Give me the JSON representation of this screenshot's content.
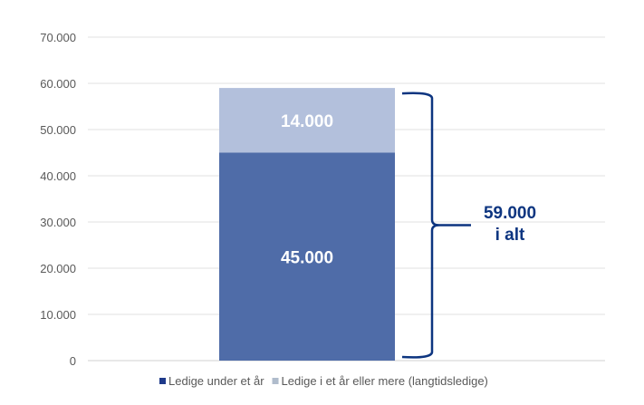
{
  "chart_data": {
    "type": "bar",
    "stacked": true,
    "categories": [
      ""
    ],
    "series": [
      {
        "name": "Ledige under et år",
        "values": [
          45000
        ],
        "color": "#4f6ca8",
        "legend_color": "#1f3a8a",
        "label": "45.000"
      },
      {
        "name": "Ledige i et år eller mere (langtidsledige)",
        "values": [
          14000
        ],
        "color": "#b3c0dc",
        "legend_color": "#b0bccc",
        "label": "14.000"
      }
    ],
    "ylim": [
      0,
      70000
    ],
    "yticks": [
      "0",
      "10.000",
      "20.000",
      "30.000",
      "40.000",
      "50.000",
      "60.000",
      "70.000"
    ],
    "grid": true,
    "legend": "bottom",
    "annotation": {
      "line1": "59.000",
      "line2": "i alt",
      "color": "#0d3580"
    }
  }
}
